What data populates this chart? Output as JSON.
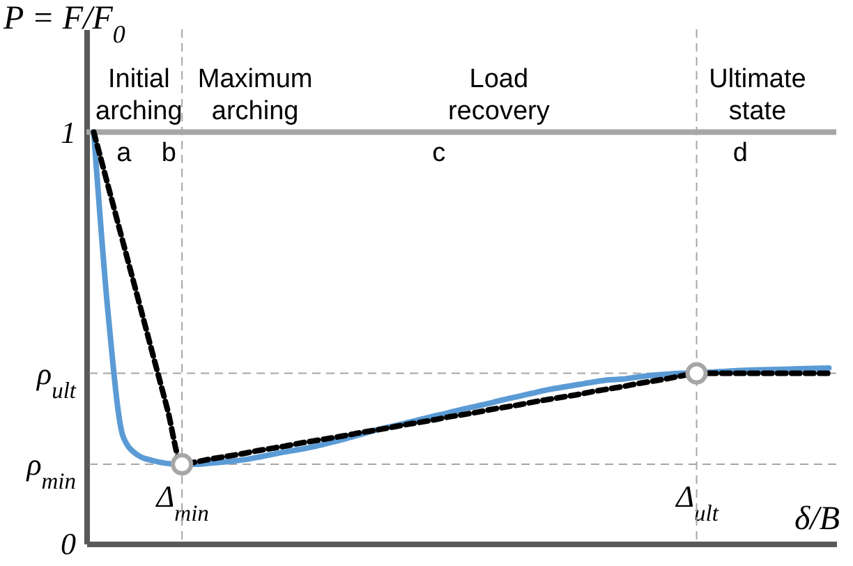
{
  "chart_data": {
    "type": "line",
    "ylabel": "P = F/F$_{0}$",
    "xlabel": "δ/B",
    "categories": [
      null,
      null,
      null,
      null,
      null,
      null,
      "Δ$_{min}$",
      null,
      null,
      null,
      null,
      null,
      null,
      null,
      null,
      null,
      null,
      null,
      null,
      null,
      null,
      null,
      null,
      null,
      null,
      null,
      null,
      null,
      null,
      null,
      null,
      null,
      null,
      null,
      null,
      null,
      null,
      null,
      null,
      null,
      null,
      "Δ$_{ult}$",
      null,
      null,
      null,
      null,
      null,
      null,
      null,
      null,
      null
    ],
    "ylim": [
      0,
      1.25
    ],
    "yticks": [
      {
        "value": 0,
        "label": "0"
      },
      {
        "value": 0.193,
        "label": "ρ$_{min}$"
      },
      {
        "value": 0.414,
        "label": "ρ$_{ult}$"
      },
      {
        "value": 1,
        "label": "1"
      }
    ],
    "grid": false,
    "series": [
      {
        "color": "#5b9bd5",
        "line_style": "solid",
        "values": [
          1,
          0.55,
          0.26,
          0.215,
          0.202,
          0.195,
          0.193,
          0.193,
          0.196,
          0.199,
          0.203,
          0.209,
          0.216,
          0.223,
          0.229,
          0.236,
          0.245,
          0.254,
          0.264,
          0.274,
          0.283,
          0.291,
          0.3,
          0.309,
          0.317,
          0.326,
          0.334,
          0.342,
          0.351,
          0.359,
          0.367,
          0.375,
          0.381,
          0.387,
          0.393,
          0.398,
          0.4,
          0.405,
          0.409,
          0.412,
          0.414,
          0.414,
          0.417,
          0.419,
          0.421,
          0.422,
          0.423,
          0.424,
          0.425,
          0.426,
          0.427
        ]
      },
      {
        "color": "#000000",
        "line_style": "dashed",
        "values": [
          1,
          0.866,
          0.731,
          0.597,
          0.462,
          0.328,
          0.193,
          0.199,
          0.206,
          0.212,
          0.218,
          0.225,
          0.231,
          0.237,
          0.244,
          0.25,
          0.256,
          0.262,
          0.269,
          0.275,
          0.281,
          0.288,
          0.294,
          0.3,
          0.307,
          0.313,
          0.319,
          0.326,
          0.332,
          0.338,
          0.345,
          0.351,
          0.357,
          0.363,
          0.37,
          0.376,
          0.382,
          0.389,
          0.395,
          0.401,
          0.408,
          0.414,
          0.414,
          0.414,
          0.414,
          0.414,
          0.414,
          0.414,
          0.414,
          0.414,
          0.414
        ]
      },
      {
        "type": "scatter",
        "color": "#a6a6a6",
        "marker": "circle",
        "x": [
          "Δ$_{min}$",
          "Δ$_{ult}$"
        ],
        "values": [
          0.193,
          0.414
        ]
      }
    ],
    "ref_lines": [
      {
        "axis": "y",
        "value": 1,
        "color": "#a6a6a6",
        "line_style": "solid"
      },
      {
        "axis": "y",
        "value": 0.414,
        "color": "#a6a6a6",
        "line_style": "dashed"
      },
      {
        "axis": "y",
        "value": 0.193,
        "color": "#a6a6a6",
        "line_style": "dashed"
      },
      {
        "axis": "x",
        "value": "Δ$_{min}$",
        "color": "#a6a6a6",
        "line_style": "dashed"
      },
      {
        "axis": "x",
        "value": "Δ$_{ult}$",
        "color": "#a6a6a6",
        "line_style": "dashed"
      }
    ],
    "annotations": [
      "Initial\narching",
      "Maximum\narching",
      "Load\nrecovery",
      "Ultimate\nstate",
      "a",
      "b",
      "c",
      "d"
    ]
  }
}
